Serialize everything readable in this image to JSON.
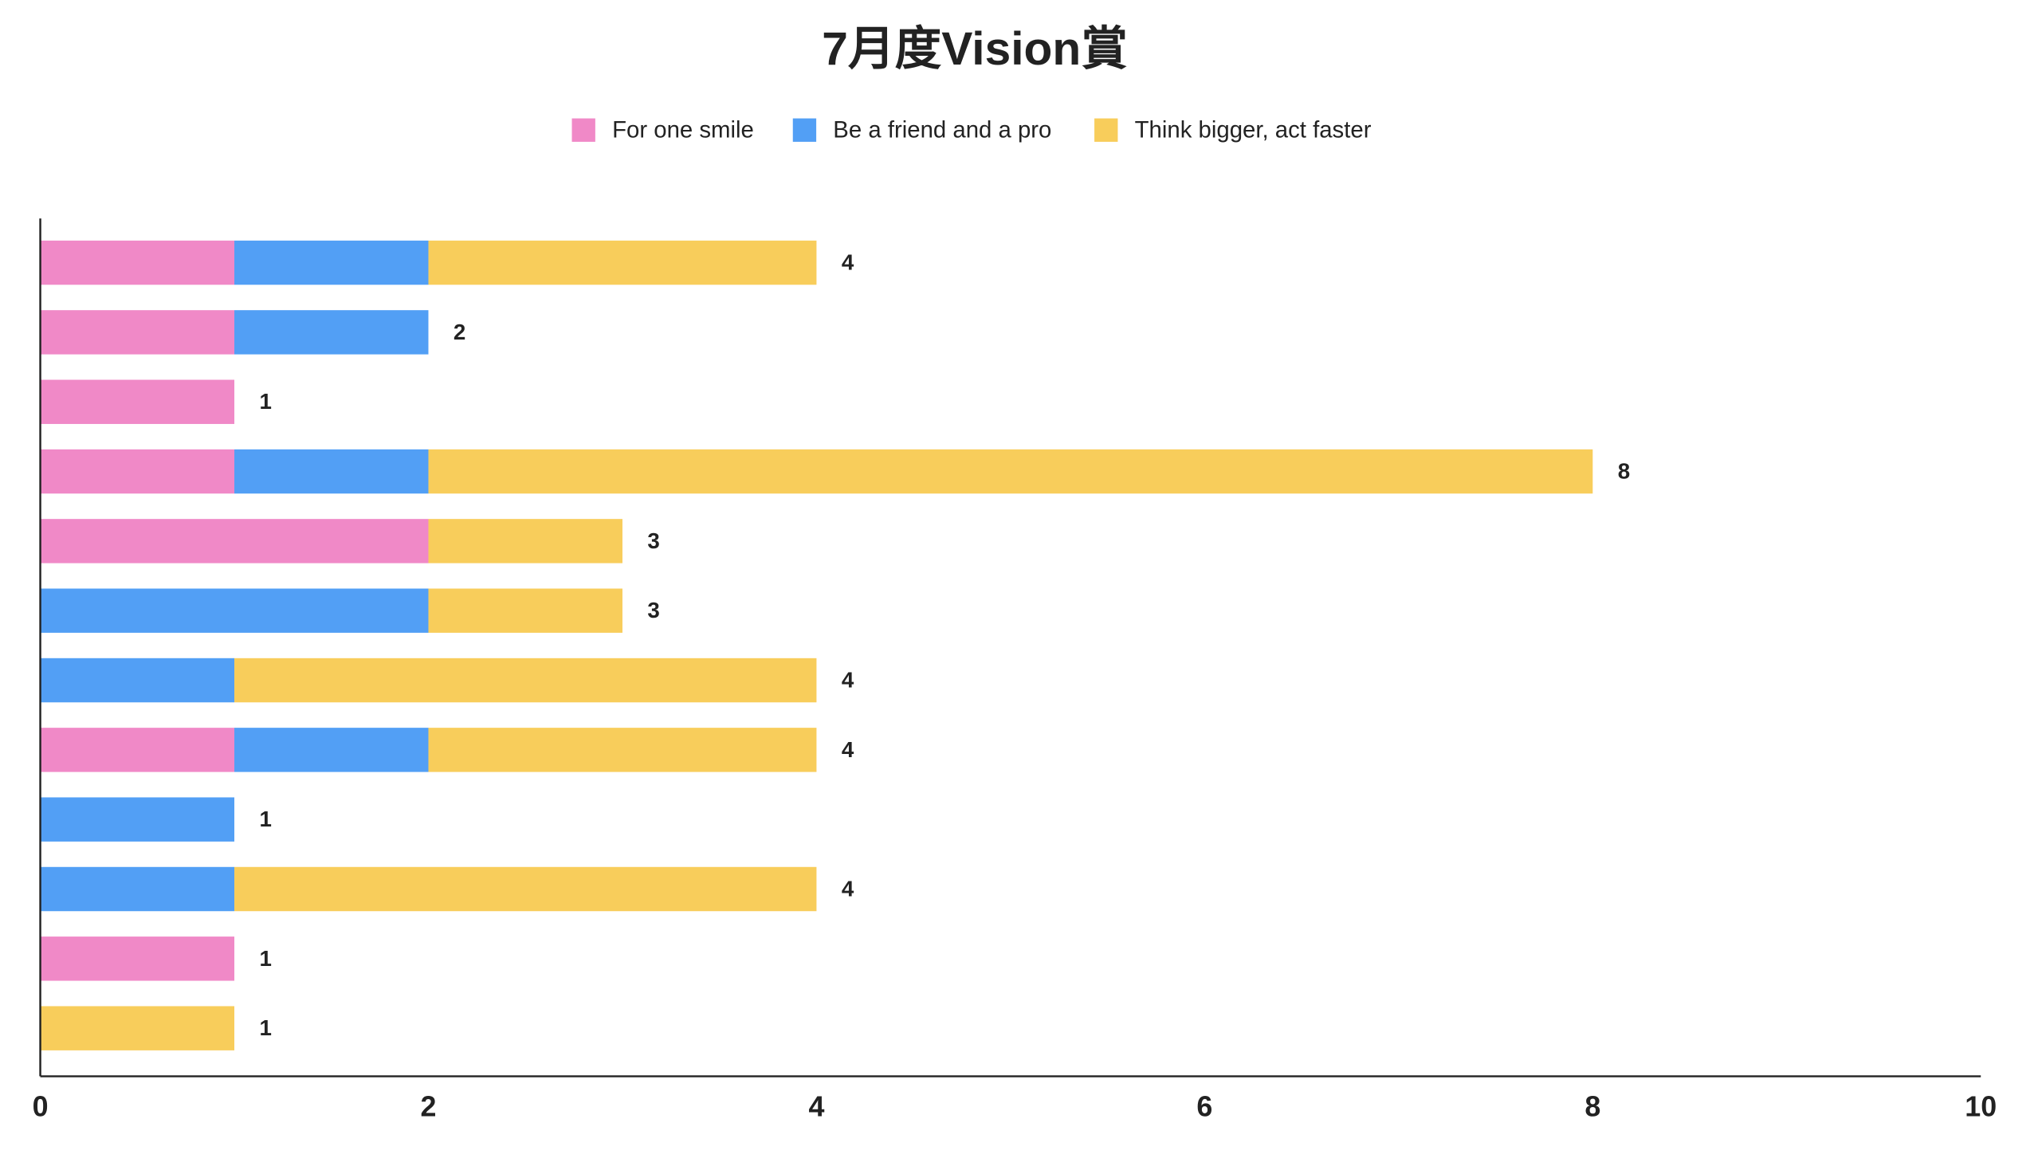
{
  "chart_data": {
    "type": "bar",
    "orientation": "horizontal",
    "stacked": true,
    "title": "7月度Vision賞",
    "categories": [
      null,
      null,
      null,
      null,
      null,
      null,
      null,
      null,
      null,
      null,
      null,
      null
    ],
    "series": [
      {
        "name": "For one smile",
        "color": "#f089c7",
        "values": [
          1,
          1,
          1,
          1,
          2,
          0,
          0,
          1,
          0,
          0,
          1,
          0
        ]
      },
      {
        "name": "Be a friend and a pro",
        "color": "#529ff5",
        "values": [
          1,
          1,
          0,
          1,
          0,
          2,
          1,
          1,
          1,
          1,
          0,
          0
        ]
      },
      {
        "name": "Think bigger, act faster",
        "color": "#f8cd5b",
        "values": [
          2,
          0,
          0,
          6,
          1,
          1,
          3,
          2,
          0,
          3,
          0,
          1
        ]
      }
    ],
    "totals": [
      4,
      2,
      1,
      8,
      3,
      3,
      4,
      4,
      1,
      4,
      1,
      1
    ],
    "xlim": [
      0,
      10
    ],
    "xticks": [
      0,
      2,
      4,
      6,
      8,
      10
    ],
    "grid": false,
    "legend": "top"
  }
}
